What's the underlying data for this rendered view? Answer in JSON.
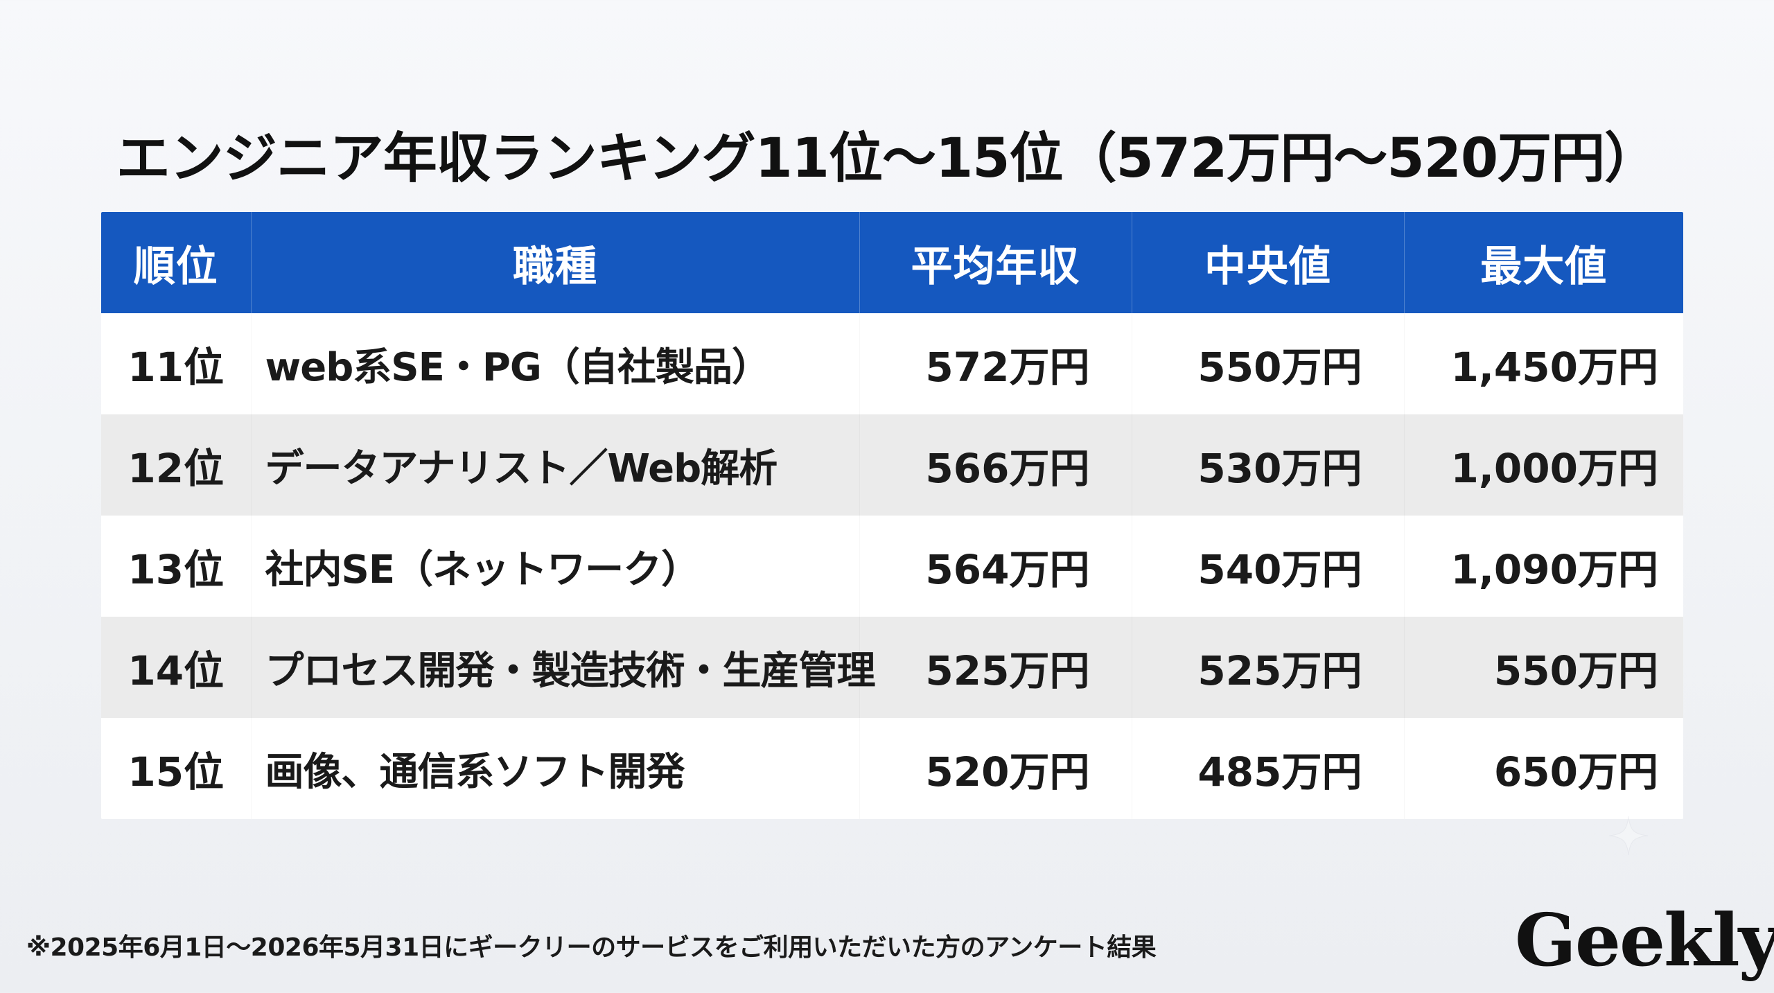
{
  "title": "エンジニア年収ランキング11位〜15位（572万円〜520万円）",
  "table": {
    "headers": [
      "順位",
      "職種",
      "平均年収",
      "中央値",
      "最大値"
    ],
    "rows": [
      {
        "rank": "11位",
        "job": "web系SE・PG（自社製品）",
        "avg": "572万円",
        "median": "550万円",
        "max": "1,450万円"
      },
      {
        "rank": "12位",
        "job": "データアナリスト／Web解析",
        "avg": "566万円",
        "median": "530万円",
        "max": "1,000万円"
      },
      {
        "rank": "13位",
        "job": "社内SE（ネットワーク）",
        "avg": "564万円",
        "median": "540万円",
        "max": "1,090万円"
      },
      {
        "rank": "14位",
        "job": "プロセス開発・製造技術・生産管理",
        "avg": "525万円",
        "median": "525万円",
        "max": "550万円"
      },
      {
        "rank": "15位",
        "job": "画像、通信系ソフト開発",
        "avg": "520万円",
        "median": "485万円",
        "max": "650万円"
      }
    ]
  },
  "footnote": "※2025年6月1日〜2026年5月31日にギークリーのサービスをご利用いただいた方のアンケート結果",
  "logo": "Geekly",
  "colors": {
    "header_bg": "#1558bf",
    "row_odd": "#ffffff",
    "row_even": "#ebebeb"
  }
}
